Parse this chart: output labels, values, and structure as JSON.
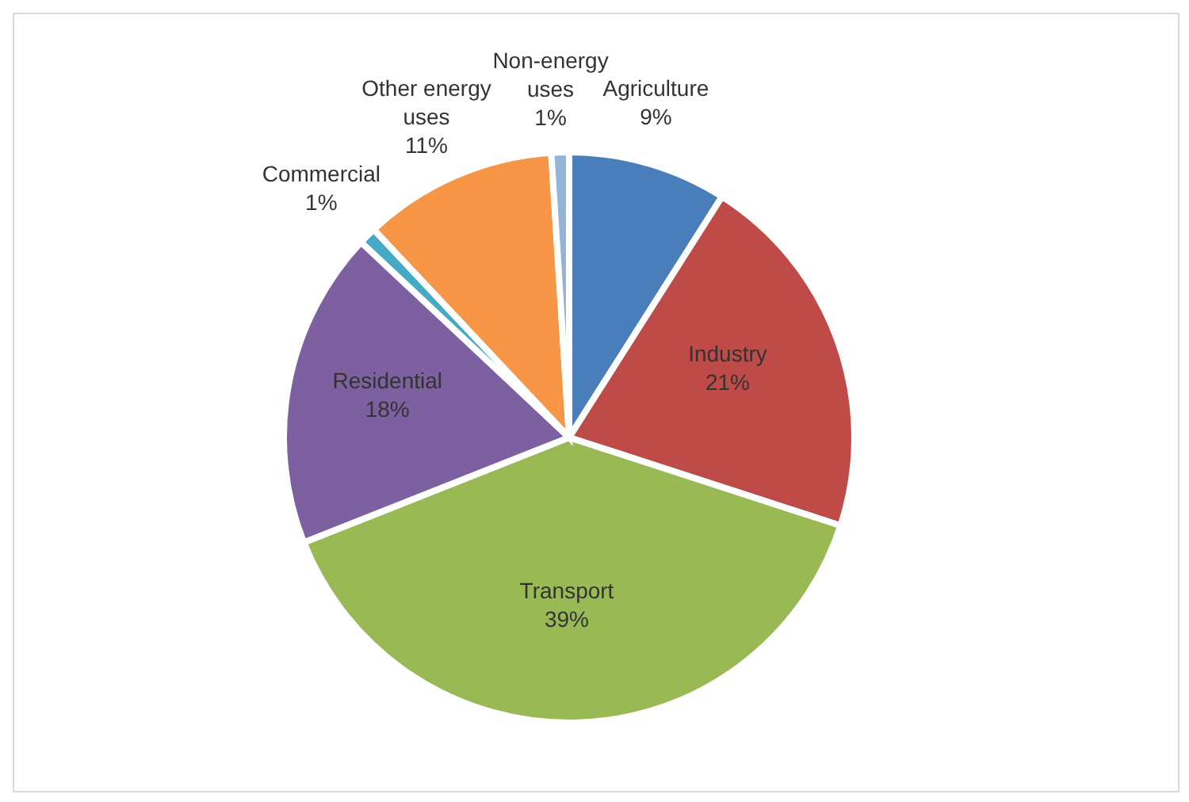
{
  "chart_data": {
    "type": "pie",
    "categories": [
      "Agriculture",
      "Industry",
      "Transport",
      "Residential",
      "Commercial",
      "Other energy uses",
      "Non-energy uses"
    ],
    "values": [
      9,
      21,
      39,
      18,
      1,
      11,
      1
    ],
    "value_labels": [
      "9%",
      "21%",
      "39%",
      "18%",
      "1%",
      "11%",
      "1%"
    ],
    "colors": [
      "#4a7ebb",
      "#be4b48",
      "#98b954",
      "#7d60a0",
      "#46aac5",
      "#f79646",
      "#95b3d7"
    ],
    "legend": false
  }
}
